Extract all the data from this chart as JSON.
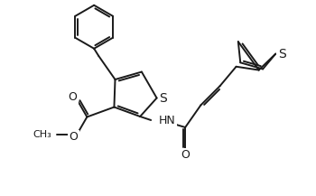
{
  "bg_color": "#ffffff",
  "line_color": "#1a1a1a",
  "line_width": 1.4,
  "font_size": 9,
  "fig_width": 3.5,
  "fig_height": 2.17,
  "dpi": 100,
  "xlim": [
    0,
    350
  ],
  "ylim": [
    0,
    217
  ]
}
